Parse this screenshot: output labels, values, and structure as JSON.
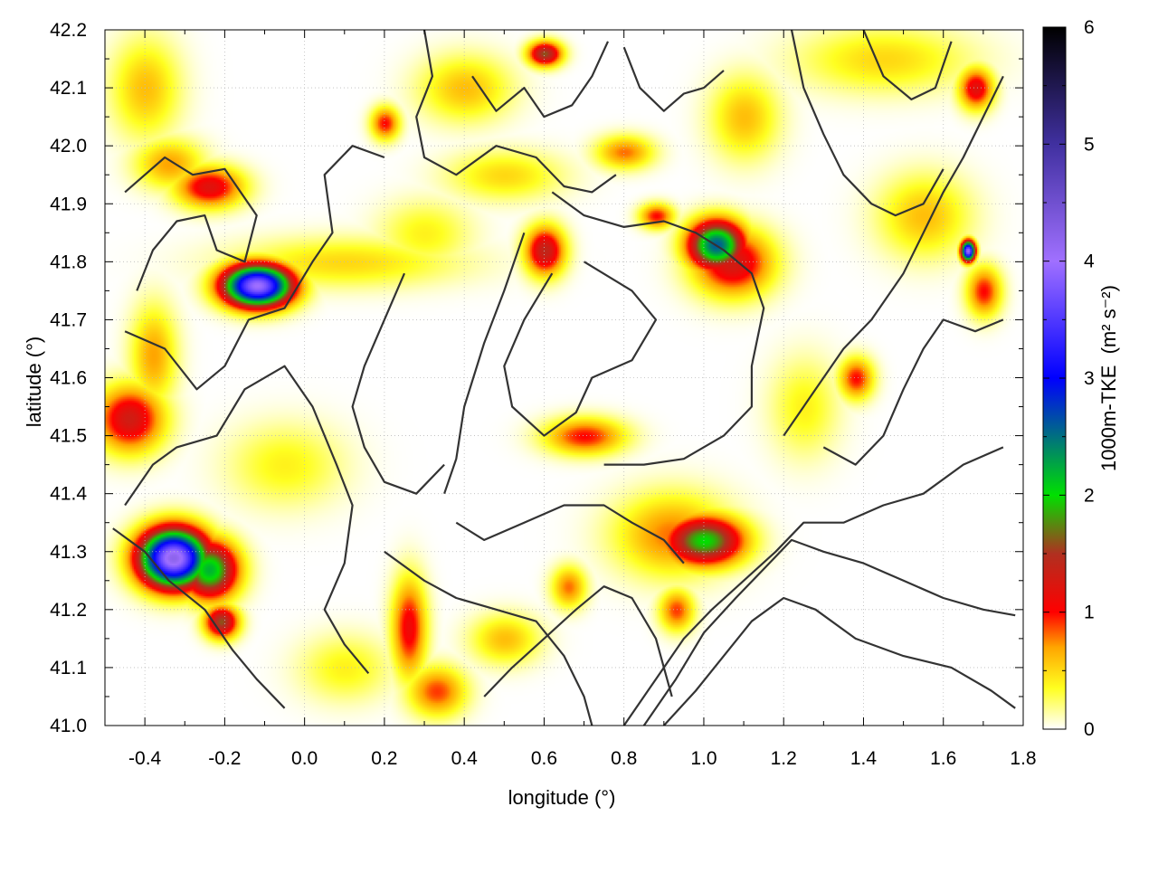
{
  "chart_data": {
    "type": "heatmap",
    "xlabel": "longitude (°)",
    "ylabel": "latitude (°)",
    "colorbar_label": "1000m-TKE",
    "colorbar_unit": "(m² s⁻²)",
    "xlim": [
      -0.5,
      1.8
    ],
    "ylim": [
      41.0,
      42.2
    ],
    "clim": [
      0,
      6
    ],
    "x_ticks": [
      {
        "v": -0.4,
        "label": "-0.4"
      },
      {
        "v": -0.2,
        "label": "-0.2"
      },
      {
        "v": 0.0,
        "label": "0.0"
      },
      {
        "v": 0.2,
        "label": "0.2"
      },
      {
        "v": 0.4,
        "label": "0.4"
      },
      {
        "v": 0.6,
        "label": "0.6"
      },
      {
        "v": 0.8,
        "label": "0.8"
      },
      {
        "v": 1.0,
        "label": "1.0"
      },
      {
        "v": 1.2,
        "label": "1.2"
      },
      {
        "v": 1.4,
        "label": "1.4"
      },
      {
        "v": 1.6,
        "label": "1.6"
      },
      {
        "v": 1.8,
        "label": "1.8"
      }
    ],
    "y_ticks": [
      {
        "v": 41.0,
        "label": "41.0"
      },
      {
        "v": 41.1,
        "label": "41.1"
      },
      {
        "v": 41.2,
        "label": "41.2"
      },
      {
        "v": 41.3,
        "label": "41.3"
      },
      {
        "v": 41.4,
        "label": "41.4"
      },
      {
        "v": 41.5,
        "label": "41.5"
      },
      {
        "v": 41.6,
        "label": "41.6"
      },
      {
        "v": 41.7,
        "label": "41.7"
      },
      {
        "v": 41.8,
        "label": "41.8"
      },
      {
        "v": 41.9,
        "label": "41.9"
      },
      {
        "v": 42.0,
        "label": "42.0"
      },
      {
        "v": 42.1,
        "label": "42.1"
      },
      {
        "v": 42.2,
        "label": "42.2"
      }
    ],
    "colorbar_ticks": [
      {
        "v": 0,
        "label": "0"
      },
      {
        "v": 1,
        "label": "1"
      },
      {
        "v": 2,
        "label": "2"
      },
      {
        "v": 3,
        "label": "3"
      },
      {
        "v": 4,
        "label": "4"
      },
      {
        "v": 5,
        "label": "5"
      },
      {
        "v": 6,
        "label": "6"
      }
    ],
    "colormap": [
      {
        "v": 0.0,
        "color": "#ffffff"
      },
      {
        "v": 0.35,
        "color": "#ffff20"
      },
      {
        "v": 0.7,
        "color": "#ffa500"
      },
      {
        "v": 1.0,
        "color": "#ff0000"
      },
      {
        "v": 1.5,
        "color": "#b03020"
      },
      {
        "v": 2.0,
        "color": "#00e000"
      },
      {
        "v": 3.0,
        "color": "#0000ff"
      },
      {
        "v": 4.0,
        "color": "#a070ff"
      },
      {
        "v": 5.0,
        "color": "#4030a0"
      },
      {
        "v": 6.0,
        "color": "#000000"
      }
    ],
    "grid": true,
    "hotspots": [
      {
        "lon": -0.12,
        "lat": 41.76,
        "peak": 4.0,
        "sx": 0.06,
        "sy": 0.025
      },
      {
        "lon": -0.33,
        "lat": 41.29,
        "peak": 4.2,
        "sx": 0.06,
        "sy": 0.035
      },
      {
        "lon": -0.24,
        "lat": 41.27,
        "peak": 2.2,
        "sx": 0.05,
        "sy": 0.035
      },
      {
        "lon": -0.21,
        "lat": 41.18,
        "peak": 1.6,
        "sx": 0.03,
        "sy": 0.02
      },
      {
        "lon": -0.44,
        "lat": 41.53,
        "peak": 1.3,
        "sx": 0.06,
        "sy": 0.04
      },
      {
        "lon": -0.38,
        "lat": 41.64,
        "peak": 0.7,
        "sx": 0.04,
        "sy": 0.06
      },
      {
        "lon": -0.24,
        "lat": 41.93,
        "peak": 1.2,
        "sx": 0.06,
        "sy": 0.025
      },
      {
        "lon": -0.34,
        "lat": 41.97,
        "peak": 0.7,
        "sx": 0.06,
        "sy": 0.03
      },
      {
        "lon": 1.03,
        "lat": 41.83,
        "peak": 2.6,
        "sx": 0.05,
        "sy": 0.03
      },
      {
        "lon": 1.07,
        "lat": 41.8,
        "peak": 1.3,
        "sx": 0.07,
        "sy": 0.04
      },
      {
        "lon": 0.88,
        "lat": 41.88,
        "peak": 1.0,
        "sx": 0.03,
        "sy": 0.015
      },
      {
        "lon": 0.6,
        "lat": 41.82,
        "peak": 1.4,
        "sx": 0.035,
        "sy": 0.03
      },
      {
        "lon": 0.6,
        "lat": 42.16,
        "peak": 1.6,
        "sx": 0.03,
        "sy": 0.015
      },
      {
        "lon": 1.0,
        "lat": 41.32,
        "peak": 2.0,
        "sx": 0.07,
        "sy": 0.03
      },
      {
        "lon": 0.92,
        "lat": 41.33,
        "peak": 0.8,
        "sx": 0.1,
        "sy": 0.05
      },
      {
        "lon": 0.7,
        "lat": 41.5,
        "peak": 1.0,
        "sx": 0.07,
        "sy": 0.022
      },
      {
        "lon": 0.26,
        "lat": 41.17,
        "peak": 1.1,
        "sx": 0.03,
        "sy": 0.06
      },
      {
        "lon": 0.33,
        "lat": 41.06,
        "peak": 0.9,
        "sx": 0.05,
        "sy": 0.03
      },
      {
        "lon": 0.2,
        "lat": 42.04,
        "peak": 1.0,
        "sx": 0.025,
        "sy": 0.02
      },
      {
        "lon": 1.66,
        "lat": 41.82,
        "peak": 4.0,
        "sx": 0.012,
        "sy": 0.012
      },
      {
        "lon": 1.7,
        "lat": 41.75,
        "peak": 1.0,
        "sx": 0.03,
        "sy": 0.03
      },
      {
        "lon": 1.68,
        "lat": 42.1,
        "peak": 1.2,
        "sx": 0.03,
        "sy": 0.025
      },
      {
        "lon": 1.38,
        "lat": 41.6,
        "peak": 1.0,
        "sx": 0.03,
        "sy": 0.025
      },
      {
        "lon": 0.8,
        "lat": 41.99,
        "peak": 0.8,
        "sx": 0.05,
        "sy": 0.02
      },
      {
        "lon": 0.93,
        "lat": 41.2,
        "peak": 0.9,
        "sx": 0.03,
        "sy": 0.025
      },
      {
        "lon": 0.66,
        "lat": 41.24,
        "peak": 0.8,
        "sx": 0.03,
        "sy": 0.025
      },
      {
        "lon": 0.5,
        "lat": 41.15,
        "peak": 0.6,
        "sx": 0.06,
        "sy": 0.03
      },
      {
        "lon": 1.1,
        "lat": 42.05,
        "peak": 0.6,
        "sx": 0.06,
        "sy": 0.05
      },
      {
        "lon": 1.45,
        "lat": 42.15,
        "peak": 0.5,
        "sx": 0.15,
        "sy": 0.04
      },
      {
        "lon": 0.1,
        "lat": 41.8,
        "peak": 0.5,
        "sx": 0.2,
        "sy": 0.03
      },
      {
        "lon": 1.55,
        "lat": 41.88,
        "peak": 0.6,
        "sx": 0.08,
        "sy": 0.05
      },
      {
        "lon": 0.4,
        "lat": 42.1,
        "peak": 0.6,
        "sx": 0.08,
        "sy": 0.04
      },
      {
        "lon": -0.05,
        "lat": 41.45,
        "peak": 0.4,
        "sx": 0.1,
        "sy": 0.05
      },
      {
        "lon": 1.25,
        "lat": 41.55,
        "peak": 0.4,
        "sx": 0.06,
        "sy": 0.06
      },
      {
        "lon": 0.1,
        "lat": 41.1,
        "peak": 0.4,
        "sx": 0.08,
        "sy": 0.04
      },
      {
        "lon": -0.4,
        "lat": 42.1,
        "peak": 0.6,
        "sx": 0.06,
        "sy": 0.06
      },
      {
        "lon": 0.5,
        "lat": 41.95,
        "peak": 0.5,
        "sx": 0.1,
        "sy": 0.03
      },
      {
        "lon": 0.3,
        "lat": 41.85,
        "peak": 0.4,
        "sx": 0.08,
        "sy": 0.04
      }
    ],
    "contours": [
      [
        [
          -0.45,
          41.92
        ],
        [
          -0.35,
          41.98
        ],
        [
          -0.28,
          41.95
        ],
        [
          -0.2,
          41.96
        ],
        [
          -0.12,
          41.88
        ],
        [
          -0.15,
          41.8
        ],
        [
          -0.22,
          41.82
        ],
        [
          -0.25,
          41.88
        ],
        [
          -0.32,
          41.87
        ],
        [
          -0.38,
          41.82
        ],
        [
          -0.42,
          41.75
        ]
      ],
      [
        [
          -0.45,
          41.68
        ],
        [
          -0.35,
          41.65
        ],
        [
          -0.27,
          41.58
        ],
        [
          -0.2,
          41.62
        ],
        [
          -0.14,
          41.7
        ],
        [
          -0.05,
          41.72
        ],
        [
          0.02,
          41.8
        ],
        [
          0.07,
          41.85
        ],
        [
          0.05,
          41.95
        ],
        [
          0.12,
          42.0
        ],
        [
          0.2,
          41.98
        ]
      ],
      [
        [
          -0.45,
          41.38
        ],
        [
          -0.38,
          41.45
        ],
        [
          -0.32,
          41.48
        ],
        [
          -0.22,
          41.5
        ],
        [
          -0.15,
          41.58
        ],
        [
          -0.05,
          41.62
        ],
        [
          0.02,
          41.55
        ],
        [
          0.08,
          41.45
        ],
        [
          0.12,
          41.38
        ],
        [
          0.1,
          41.28
        ],
        [
          0.05,
          41.2
        ],
        [
          0.1,
          41.14
        ],
        [
          0.16,
          41.09
        ]
      ],
      [
        [
          -0.48,
          41.34
        ],
        [
          -0.4,
          41.3
        ],
        [
          -0.34,
          41.25
        ],
        [
          -0.25,
          41.2
        ],
        [
          -0.18,
          41.13
        ],
        [
          -0.12,
          41.08
        ],
        [
          -0.05,
          41.03
        ]
      ],
      [
        [
          0.3,
          42.2
        ],
        [
          0.32,
          42.12
        ],
        [
          0.28,
          42.05
        ],
        [
          0.3,
          41.98
        ],
        [
          0.38,
          41.95
        ],
        [
          0.48,
          42.0
        ],
        [
          0.58,
          41.98
        ],
        [
          0.65,
          41.93
        ],
        [
          0.72,
          41.92
        ],
        [
          0.78,
          41.95
        ]
      ],
      [
        [
          0.42,
          42.12
        ],
        [
          0.48,
          42.06
        ],
        [
          0.55,
          42.1
        ],
        [
          0.6,
          42.05
        ],
        [
          0.67,
          42.07
        ],
        [
          0.72,
          42.12
        ],
        [
          0.76,
          42.18
        ]
      ],
      [
        [
          0.8,
          42.17
        ],
        [
          0.84,
          42.1
        ],
        [
          0.9,
          42.06
        ],
        [
          0.95,
          42.09
        ],
        [
          1.0,
          42.1
        ],
        [
          1.05,
          42.13
        ]
      ],
      [
        [
          0.62,
          41.92
        ],
        [
          0.7,
          41.88
        ],
        [
          0.8,
          41.86
        ],
        [
          0.9,
          41.87
        ],
        [
          0.98,
          41.85
        ],
        [
          1.05,
          41.82
        ],
        [
          1.12,
          41.78
        ],
        [
          1.15,
          41.72
        ],
        [
          1.12,
          41.62
        ],
        [
          1.12,
          41.55
        ],
        [
          1.05,
          41.5
        ],
        [
          0.95,
          41.46
        ],
        [
          0.85,
          41.45
        ],
        [
          0.75,
          41.45
        ]
      ],
      [
        [
          0.55,
          41.85
        ],
        [
          0.5,
          41.75
        ],
        [
          0.45,
          41.66
        ],
        [
          0.4,
          41.55
        ],
        [
          0.38,
          41.46
        ],
        [
          0.35,
          41.4
        ]
      ],
      [
        [
          0.62,
          41.78
        ],
        [
          0.55,
          41.7
        ],
        [
          0.5,
          41.62
        ],
        [
          0.52,
          41.55
        ],
        [
          0.6,
          41.5
        ],
        [
          0.68,
          41.54
        ],
        [
          0.72,
          41.6
        ],
        [
          0.82,
          41.63
        ],
        [
          0.88,
          41.7
        ],
        [
          0.82,
          41.75
        ],
        [
          0.7,
          41.8
        ]
      ],
      [
        [
          0.25,
          41.78
        ],
        [
          0.2,
          41.7
        ],
        [
          0.15,
          41.62
        ],
        [
          0.12,
          41.55
        ],
        [
          0.15,
          41.48
        ],
        [
          0.2,
          41.42
        ],
        [
          0.28,
          41.4
        ],
        [
          0.35,
          41.45
        ]
      ],
      [
        [
          0.38,
          41.35
        ],
        [
          0.45,
          41.32
        ],
        [
          0.55,
          41.35
        ],
        [
          0.65,
          41.38
        ],
        [
          0.75,
          41.38
        ],
        [
          0.82,
          41.35
        ],
        [
          0.9,
          41.32
        ],
        [
          0.95,
          41.28
        ]
      ],
      [
        [
          0.2,
          41.3
        ],
        [
          0.3,
          41.25
        ],
        [
          0.38,
          41.22
        ],
        [
          0.48,
          41.2
        ],
        [
          0.58,
          41.18
        ],
        [
          0.65,
          41.12
        ],
        [
          0.7,
          41.05
        ],
        [
          0.72,
          41.0
        ]
      ],
      [
        [
          0.45,
          41.05
        ],
        [
          0.52,
          41.1
        ],
        [
          0.6,
          41.15
        ],
        [
          0.68,
          41.2
        ],
        [
          0.75,
          41.24
        ],
        [
          0.82,
          41.22
        ],
        [
          0.88,
          41.15
        ],
        [
          0.92,
          41.05
        ]
      ],
      [
        [
          0.8,
          41.0
        ],
        [
          0.88,
          41.08
        ],
        [
          0.95,
          41.15
        ],
        [
          1.02,
          41.2
        ],
        [
          1.1,
          41.25
        ],
        [
          1.18,
          41.3
        ],
        [
          1.25,
          41.35
        ],
        [
          1.35,
          41.35
        ],
        [
          1.45,
          41.38
        ],
        [
          1.55,
          41.4
        ],
        [
          1.65,
          41.45
        ],
        [
          1.75,
          41.48
        ]
      ],
      [
        [
          0.85,
          41.0
        ],
        [
          0.93,
          41.08
        ],
        [
          1.0,
          41.16
        ],
        [
          1.08,
          41.22
        ],
        [
          1.15,
          41.27
        ],
        [
          1.22,
          41.32
        ],
        [
          1.3,
          41.3
        ],
        [
          1.4,
          41.28
        ],
        [
          1.5,
          41.25
        ],
        [
          1.6,
          41.22
        ],
        [
          1.7,
          41.2
        ],
        [
          1.78,
          41.19
        ]
      ],
      [
        [
          0.9,
          41.0
        ],
        [
          0.98,
          41.06
        ],
        [
          1.05,
          41.12
        ],
        [
          1.12,
          41.18
        ],
        [
          1.2,
          41.22
        ],
        [
          1.28,
          41.2
        ],
        [
          1.38,
          41.15
        ],
        [
          1.5,
          41.12
        ],
        [
          1.62,
          41.1
        ],
        [
          1.72,
          41.06
        ],
        [
          1.78,
          41.03
        ]
      ],
      [
        [
          1.2,
          41.5
        ],
        [
          1.28,
          41.58
        ],
        [
          1.35,
          41.65
        ],
        [
          1.42,
          41.7
        ],
        [
          1.5,
          41.78
        ],
        [
          1.55,
          41.85
        ],
        [
          1.6,
          41.92
        ],
        [
          1.65,
          41.98
        ],
        [
          1.7,
          42.05
        ],
        [
          1.75,
          42.12
        ]
      ],
      [
        [
          1.22,
          42.2
        ],
        [
          1.25,
          42.1
        ],
        [
          1.3,
          42.02
        ],
        [
          1.35,
          41.95
        ],
        [
          1.42,
          41.9
        ],
        [
          1.48,
          41.88
        ],
        [
          1.55,
          41.9
        ],
        [
          1.6,
          41.96
        ]
      ],
      [
        [
          1.4,
          42.2
        ],
        [
          1.45,
          42.12
        ],
        [
          1.52,
          42.08
        ],
        [
          1.58,
          42.1
        ],
        [
          1.62,
          42.18
        ]
      ],
      [
        [
          1.3,
          41.48
        ],
        [
          1.38,
          41.45
        ],
        [
          1.45,
          41.5
        ],
        [
          1.5,
          41.58
        ],
        [
          1.55,
          41.65
        ],
        [
          1.6,
          41.7
        ],
        [
          1.68,
          41.68
        ],
        [
          1.75,
          41.7
        ]
      ]
    ]
  }
}
